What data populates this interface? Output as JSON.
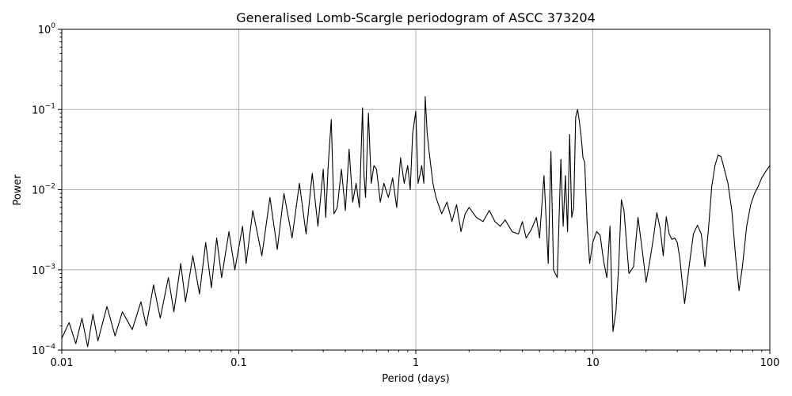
{
  "chart_data": {
    "type": "line",
    "title": "Generalised Lomb-Scargle periodogram of ASCC 373204",
    "xlabel": "Period (days)",
    "ylabel": "Power",
    "xscale": "log",
    "yscale": "log",
    "xlim": [
      0.01,
      100
    ],
    "ylim": [
      0.0001,
      1
    ],
    "grid": true,
    "legend": "none",
    "line_color": "#000000",
    "x_ticks": [
      {
        "value": 0.01,
        "label": "0.01"
      },
      {
        "value": 0.1,
        "label": "0.1"
      },
      {
        "value": 1,
        "label": "1"
      },
      {
        "value": 10,
        "label": "10"
      },
      {
        "value": 100,
        "label": "100"
      }
    ],
    "y_ticks": [
      {
        "value": 0.0001,
        "base": "10",
        "exp": "−4"
      },
      {
        "value": 0.001,
        "base": "10",
        "exp": "−3"
      },
      {
        "value": 0.01,
        "base": "10",
        "exp": "−2"
      },
      {
        "value": 0.1,
        "base": "10",
        "exp": "−1"
      },
      {
        "value": 1,
        "base": "10",
        "exp": "0"
      }
    ],
    "series": [
      {
        "x": [
          0.01,
          0.011,
          0.012,
          0.013,
          0.014,
          0.015,
          0.016,
          0.018,
          0.02,
          0.022,
          0.025,
          0.028,
          0.03,
          0.033,
          0.036,
          0.04,
          0.043,
          0.047,
          0.05,
          0.055,
          0.06,
          0.065,
          0.07,
          0.075,
          0.08,
          0.088,
          0.095,
          0.105,
          0.11,
          0.12,
          0.135,
          0.15,
          0.165,
          0.18,
          0.2,
          0.22,
          0.24,
          0.26,
          0.28,
          0.3,
          0.31,
          0.32,
          0.333,
          0.345,
          0.36,
          0.38,
          0.4,
          0.42,
          0.44,
          0.46,
          0.48,
          0.5,
          0.51,
          0.52,
          0.54,
          0.56,
          0.58,
          0.6,
          0.63,
          0.66,
          0.7,
          0.74,
          0.78,
          0.82,
          0.86,
          0.9,
          0.93,
          0.96,
          1.0,
          1.03,
          1.06,
          1.08,
          1.11,
          1.13,
          1.16,
          1.2,
          1.25,
          1.3,
          1.4,
          1.5,
          1.6,
          1.7,
          1.8,
          1.9,
          2.0,
          2.2,
          2.4,
          2.6,
          2.8,
          3.0,
          3.2,
          3.5,
          3.8,
          4.0,
          4.2,
          4.5,
          4.8,
          5.0,
          5.3,
          5.6,
          5.8,
          6.0,
          6.3,
          6.6,
          6.8,
          7.0,
          7.2,
          7.4,
          7.6,
          7.8,
          8.0,
          8.2,
          8.4,
          8.6,
          8.8,
          9.0,
          9.3,
          9.6,
          10.0,
          10.5,
          11.0,
          11.5,
          12.0,
          12.5,
          13.0,
          13.5,
          14.0,
          14.5,
          15.0,
          16.0,
          17.0,
          18.0,
          19.0,
          20.0,
          21.0,
          22.0,
          23.0,
          24.0,
          25.0,
          26.0,
          27.0,
          28.0,
          29.0,
          30.0,
          31.0,
          32.0,
          33.0,
          35.0,
          37.0,
          39.0,
          41.0,
          43.0,
          45.0,
          47.0,
          49.0,
          51.0,
          53.0,
          55.0,
          58.0,
          61.0,
          64.0,
          67.0,
          70.0,
          74.0,
          78.0,
          82.0,
          86.0,
          90.0,
          95.0,
          100.0
        ],
        "y": [
          0.00014,
          0.00022,
          0.00012,
          0.00025,
          0.00011,
          0.00028,
          0.00013,
          0.00035,
          0.00015,
          0.0003,
          0.00018,
          0.0004,
          0.0002,
          0.00065,
          0.00025,
          0.0008,
          0.0003,
          0.0012,
          0.0004,
          0.0015,
          0.0005,
          0.0022,
          0.0006,
          0.0025,
          0.0008,
          0.003,
          0.001,
          0.0035,
          0.0012,
          0.0055,
          0.0015,
          0.008,
          0.0018,
          0.009,
          0.0025,
          0.012,
          0.0028,
          0.016,
          0.0035,
          0.018,
          0.0045,
          0.02,
          0.075,
          0.005,
          0.006,
          0.018,
          0.0055,
          0.032,
          0.007,
          0.012,
          0.006,
          0.105,
          0.015,
          0.008,
          0.09,
          0.012,
          0.02,
          0.018,
          0.007,
          0.012,
          0.008,
          0.014,
          0.006,
          0.025,
          0.012,
          0.02,
          0.01,
          0.05,
          0.095,
          0.012,
          0.016,
          0.02,
          0.012,
          0.145,
          0.05,
          0.025,
          0.012,
          0.008,
          0.005,
          0.007,
          0.004,
          0.0065,
          0.003,
          0.005,
          0.006,
          0.0045,
          0.004,
          0.0055,
          0.004,
          0.0035,
          0.0042,
          0.003,
          0.0028,
          0.004,
          0.0025,
          0.0032,
          0.0045,
          0.0025,
          0.015,
          0.0012,
          0.03,
          0.001,
          0.0008,
          0.024,
          0.0035,
          0.015,
          0.003,
          0.049,
          0.0045,
          0.006,
          0.08,
          0.1,
          0.07,
          0.045,
          0.025,
          0.022,
          0.0035,
          0.0012,
          0.0022,
          0.003,
          0.0027,
          0.0013,
          0.0008,
          0.0035,
          0.00017,
          0.0003,
          0.0011,
          0.0075,
          0.0055,
          0.0009,
          0.0011,
          0.0045,
          0.0018,
          0.0007,
          0.0013,
          0.0025,
          0.0052,
          0.0033,
          0.0015,
          0.0046,
          0.0028,
          0.0024,
          0.0025,
          0.0022,
          0.0014,
          0.0007,
          0.00038,
          0.0011,
          0.0028,
          0.0036,
          0.0028,
          0.0011,
          0.0032,
          0.011,
          0.02,
          0.027,
          0.026,
          0.019,
          0.012,
          0.0055,
          0.0015,
          0.00055,
          0.0011,
          0.0035,
          0.0065,
          0.009,
          0.011,
          0.014,
          0.017,
          0.02
        ]
      }
    ]
  }
}
